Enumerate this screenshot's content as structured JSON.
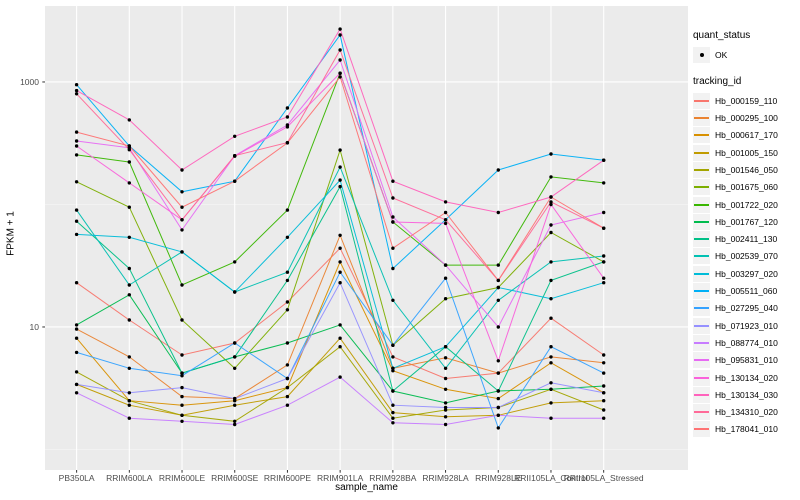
{
  "colors": {
    "panel_bg": "#EBEBEB",
    "grid_major": "#FFFFFF",
    "grid_minor": "#F7F7F7",
    "tick_label": "#4D4D4D",
    "axis_title": "#000000",
    "tick_mark": "#333333",
    "point": "#000000",
    "legend_key_bg": "#F2F2F2"
  },
  "chart_data": {
    "type": "line",
    "title": "",
    "xlabel": "sample_name",
    "ylabel": "FPKM + 1",
    "y_scale": "log10",
    "grid": "on",
    "legend_position": "right",
    "x_categories": [
      "PB350LA",
      "RRIM600LA",
      "RRIM600LE",
      "RRIM600SE",
      "RRIM600PE",
      "RRIM901LA",
      "RRIM928BA",
      "RRIM928LA",
      "RRIM928LE",
      "RRII105LA_Control",
      "RRII105LA_Stressed"
    ],
    "y_ticks": [
      {
        "value": 10,
        "label": "10"
      },
      {
        "value": 1000,
        "label": "1000"
      }
    ],
    "minor_y_values": [
      1,
      100
    ],
    "ylim": [
      0.68,
      4170
    ],
    "legend": {
      "quant_status_title": "quant_status",
      "quant_status_items": [
        {
          "label": "OK",
          "shape": "point",
          "color": "#000000"
        }
      ],
      "tracking_id_title": "tracking_id"
    },
    "series": [
      {
        "name": "Hb_000159_110",
        "color": "#F8766D",
        "values": [
          23,
          11.4,
          5.9,
          7.4,
          16,
          44,
          5.7,
          3.8,
          4.2,
          11.8,
          5.9
        ]
      },
      {
        "name": "Hb_000295_100",
        "color": "#EA8331",
        "values": [
          9.6,
          5.7,
          2.7,
          2.6,
          4.9,
          56,
          4.6,
          5.6,
          4.2,
          5.7,
          5.1
        ]
      },
      {
        "name": "Hb_000617_170",
        "color": "#D89000",
        "values": [
          8.1,
          2.5,
          2.3,
          2.5,
          3.2,
          34,
          4.4,
          3.1,
          2.6,
          5.1,
          2.9
        ]
      },
      {
        "name": "Hb_001005_150",
        "color": "#C09B00",
        "values": [
          3.4,
          2.3,
          1.9,
          2.3,
          2.7,
          8.1,
          2.0,
          1.85,
          1.9,
          2.4,
          2.5
        ]
      },
      {
        "name": "Hb_001546_050",
        "color": "#A3A500",
        "values": [
          4.3,
          2.5,
          1.9,
          1.7,
          3.2,
          6.9,
          1.8,
          2.1,
          2.2,
          3.1,
          2.1
        ]
      },
      {
        "name": "Hb_001675_060",
        "color": "#7CAE00",
        "values": [
          153,
          95,
          11.4,
          4.6,
          13.8,
          278,
          7.1,
          17,
          21,
          59,
          34
        ]
      },
      {
        "name": "Hb_001722_020",
        "color": "#39B600",
        "values": [
          254,
          222,
          22,
          34,
          90,
          1180,
          72,
          32,
          32,
          168,
          150
        ]
      },
      {
        "name": "Hb_001767_120",
        "color": "#00BB4E",
        "values": [
          10.4,
          18.3,
          4.2,
          5.7,
          7.4,
          10.4,
          3.0,
          2.4,
          3.0,
          3.1,
          3.3
        ]
      },
      {
        "name": "Hb_002411_130",
        "color": "#00C087",
        "values": [
          73,
          30,
          4.2,
          5.7,
          24,
          140,
          3.0,
          6.9,
          3.0,
          24,
          34
        ]
      },
      {
        "name": "Hb_002539_070",
        "color": "#00C0B2",
        "values": [
          90,
          22,
          41,
          19.3,
          28,
          202,
          16.5,
          4.6,
          16.5,
          34,
          38
        ]
      },
      {
        "name": "Hb_003297_020",
        "color": "#00BCD8",
        "values": [
          57,
          54,
          41,
          19.3,
          54,
          158,
          4.6,
          6.9,
          21,
          17,
          23
        ]
      },
      {
        "name": "Hb_005511_060",
        "color": "#00B0F6",
        "values": [
          950,
          300,
          127,
          155,
          613,
          2420,
          30,
          75,
          191,
          258,
          230
        ]
      },
      {
        "name": "Hb_027295_040",
        "color": "#35A2FF",
        "values": [
          6.2,
          4.6,
          4.0,
          7.4,
          3.8,
          28,
          7.1,
          25,
          1.5,
          6.9,
          4.2
        ]
      },
      {
        "name": "Hb_071923_010",
        "color": "#9590FF",
        "values": [
          3.4,
          2.9,
          3.2,
          2.6,
          3.8,
          23,
          2.3,
          2.2,
          2.2,
          3.5,
          2.9
        ]
      },
      {
        "name": "Hb_088774_010",
        "color": "#C77CFF",
        "values": [
          2.9,
          1.8,
          1.7,
          1.6,
          2.3,
          3.9,
          1.65,
          1.6,
          1.9,
          1.8,
          1.8
        ]
      },
      {
        "name": "Hb_095831_010",
        "color": "#E76BF3",
        "values": [
          330,
          290,
          62,
          250,
          445,
          1510,
          79,
          32,
          10,
          68,
          86
        ]
      },
      {
        "name": "Hb_130134_020",
        "color": "#FA62DB",
        "values": [
          300,
          150,
          75,
          248,
          430,
          1180,
          72,
          70,
          5.3,
          100,
          25
        ]
      },
      {
        "name": "Hb_130134_030",
        "color": "#FF62BC",
        "values": [
          850,
          490,
          191,
          360,
          518,
          2700,
          155,
          105,
          86,
          115,
          230
        ]
      },
      {
        "name": "Hb_134310_020",
        "color": "#FF6A98",
        "values": [
          800,
          280,
          75,
          250,
          320,
          1825,
          113,
          75,
          24,
          105,
          64
        ]
      },
      {
        "name": "Hb_178041_010",
        "color": "#FE7374",
        "values": [
          390,
          300,
          95,
          155,
          318,
          1100,
          44,
          86,
          24,
          115,
          64
        ]
      }
    ]
  }
}
